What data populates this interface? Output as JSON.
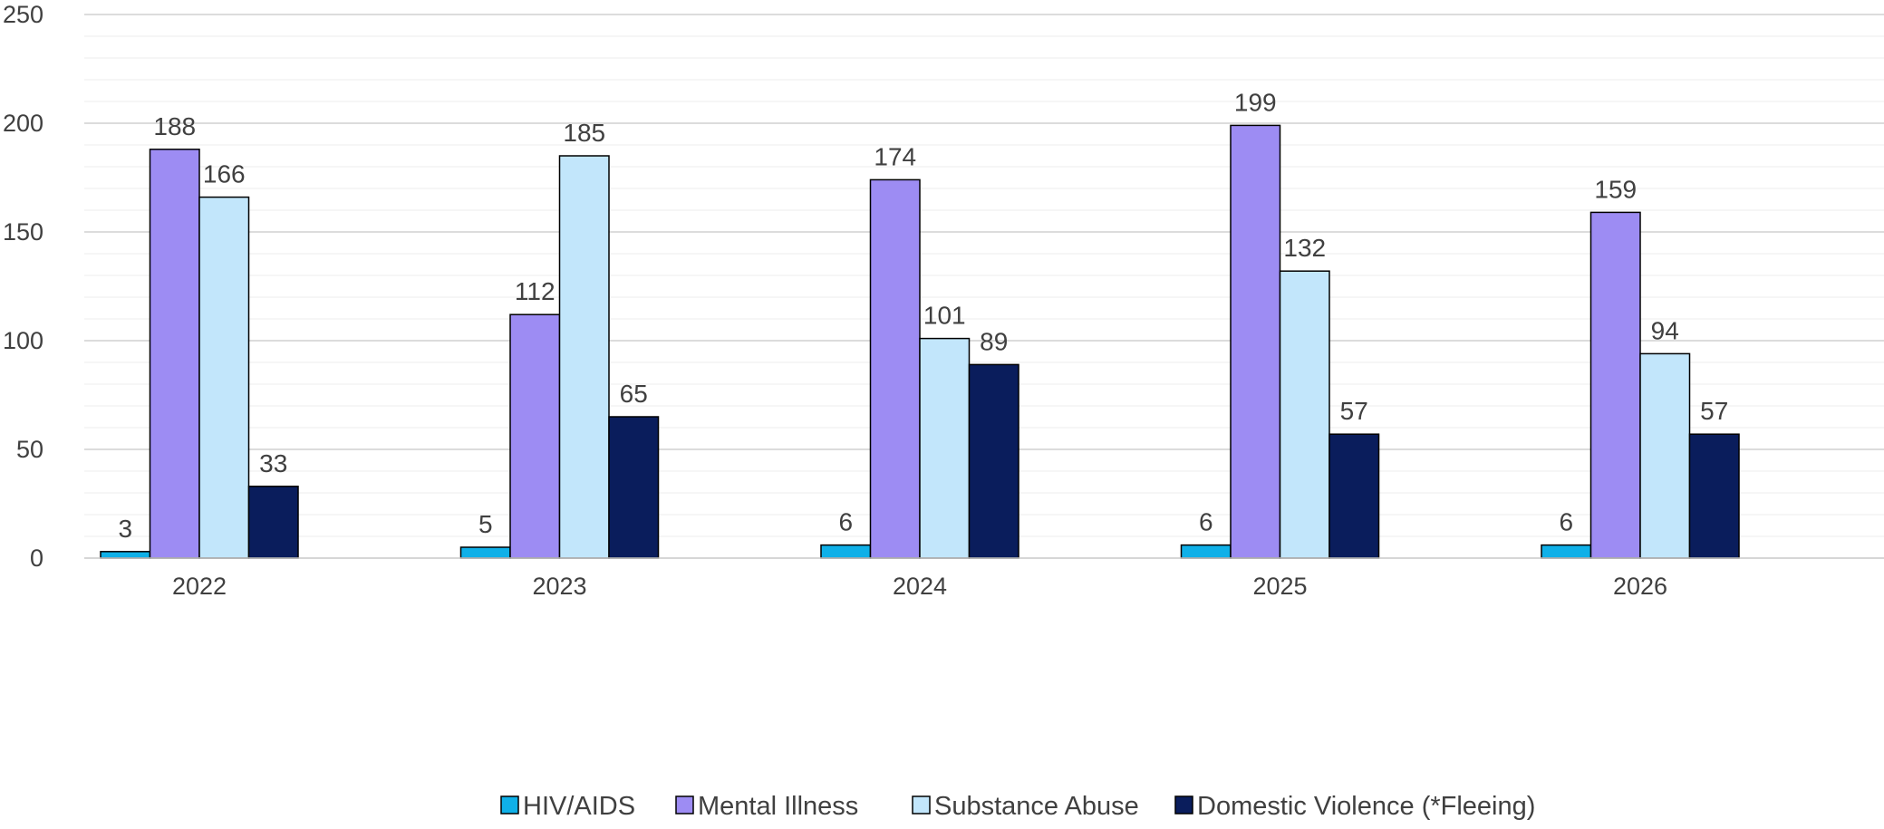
{
  "chart_data": {
    "type": "bar",
    "categories": [
      "2022",
      "2023",
      "2024",
      "2025",
      "2026"
    ],
    "series": [
      {
        "name": "HIV/AIDS",
        "color": "#0fb0e8",
        "values": [
          3,
          5,
          6,
          6,
          6
        ]
      },
      {
        "name": "Mental Illness",
        "color": "#9d8cf3",
        "values": [
          188,
          112,
          174,
          199,
          159
        ]
      },
      {
        "name": "Substance Abuse",
        "color": "#c2e6fb",
        "values": [
          166,
          185,
          101,
          132,
          94
        ]
      },
      {
        "name": "Domestic Violence (*Fleeing)",
        "color": "#0a1d5c",
        "values": [
          33,
          65,
          89,
          57,
          57
        ]
      }
    ],
    "ylim": [
      0,
      250
    ],
    "yticks": [
      0,
      50,
      100,
      150,
      200,
      250
    ],
    "minor_grid_step": 10,
    "grid": true,
    "legend": "bottom",
    "data_labels": true
  }
}
